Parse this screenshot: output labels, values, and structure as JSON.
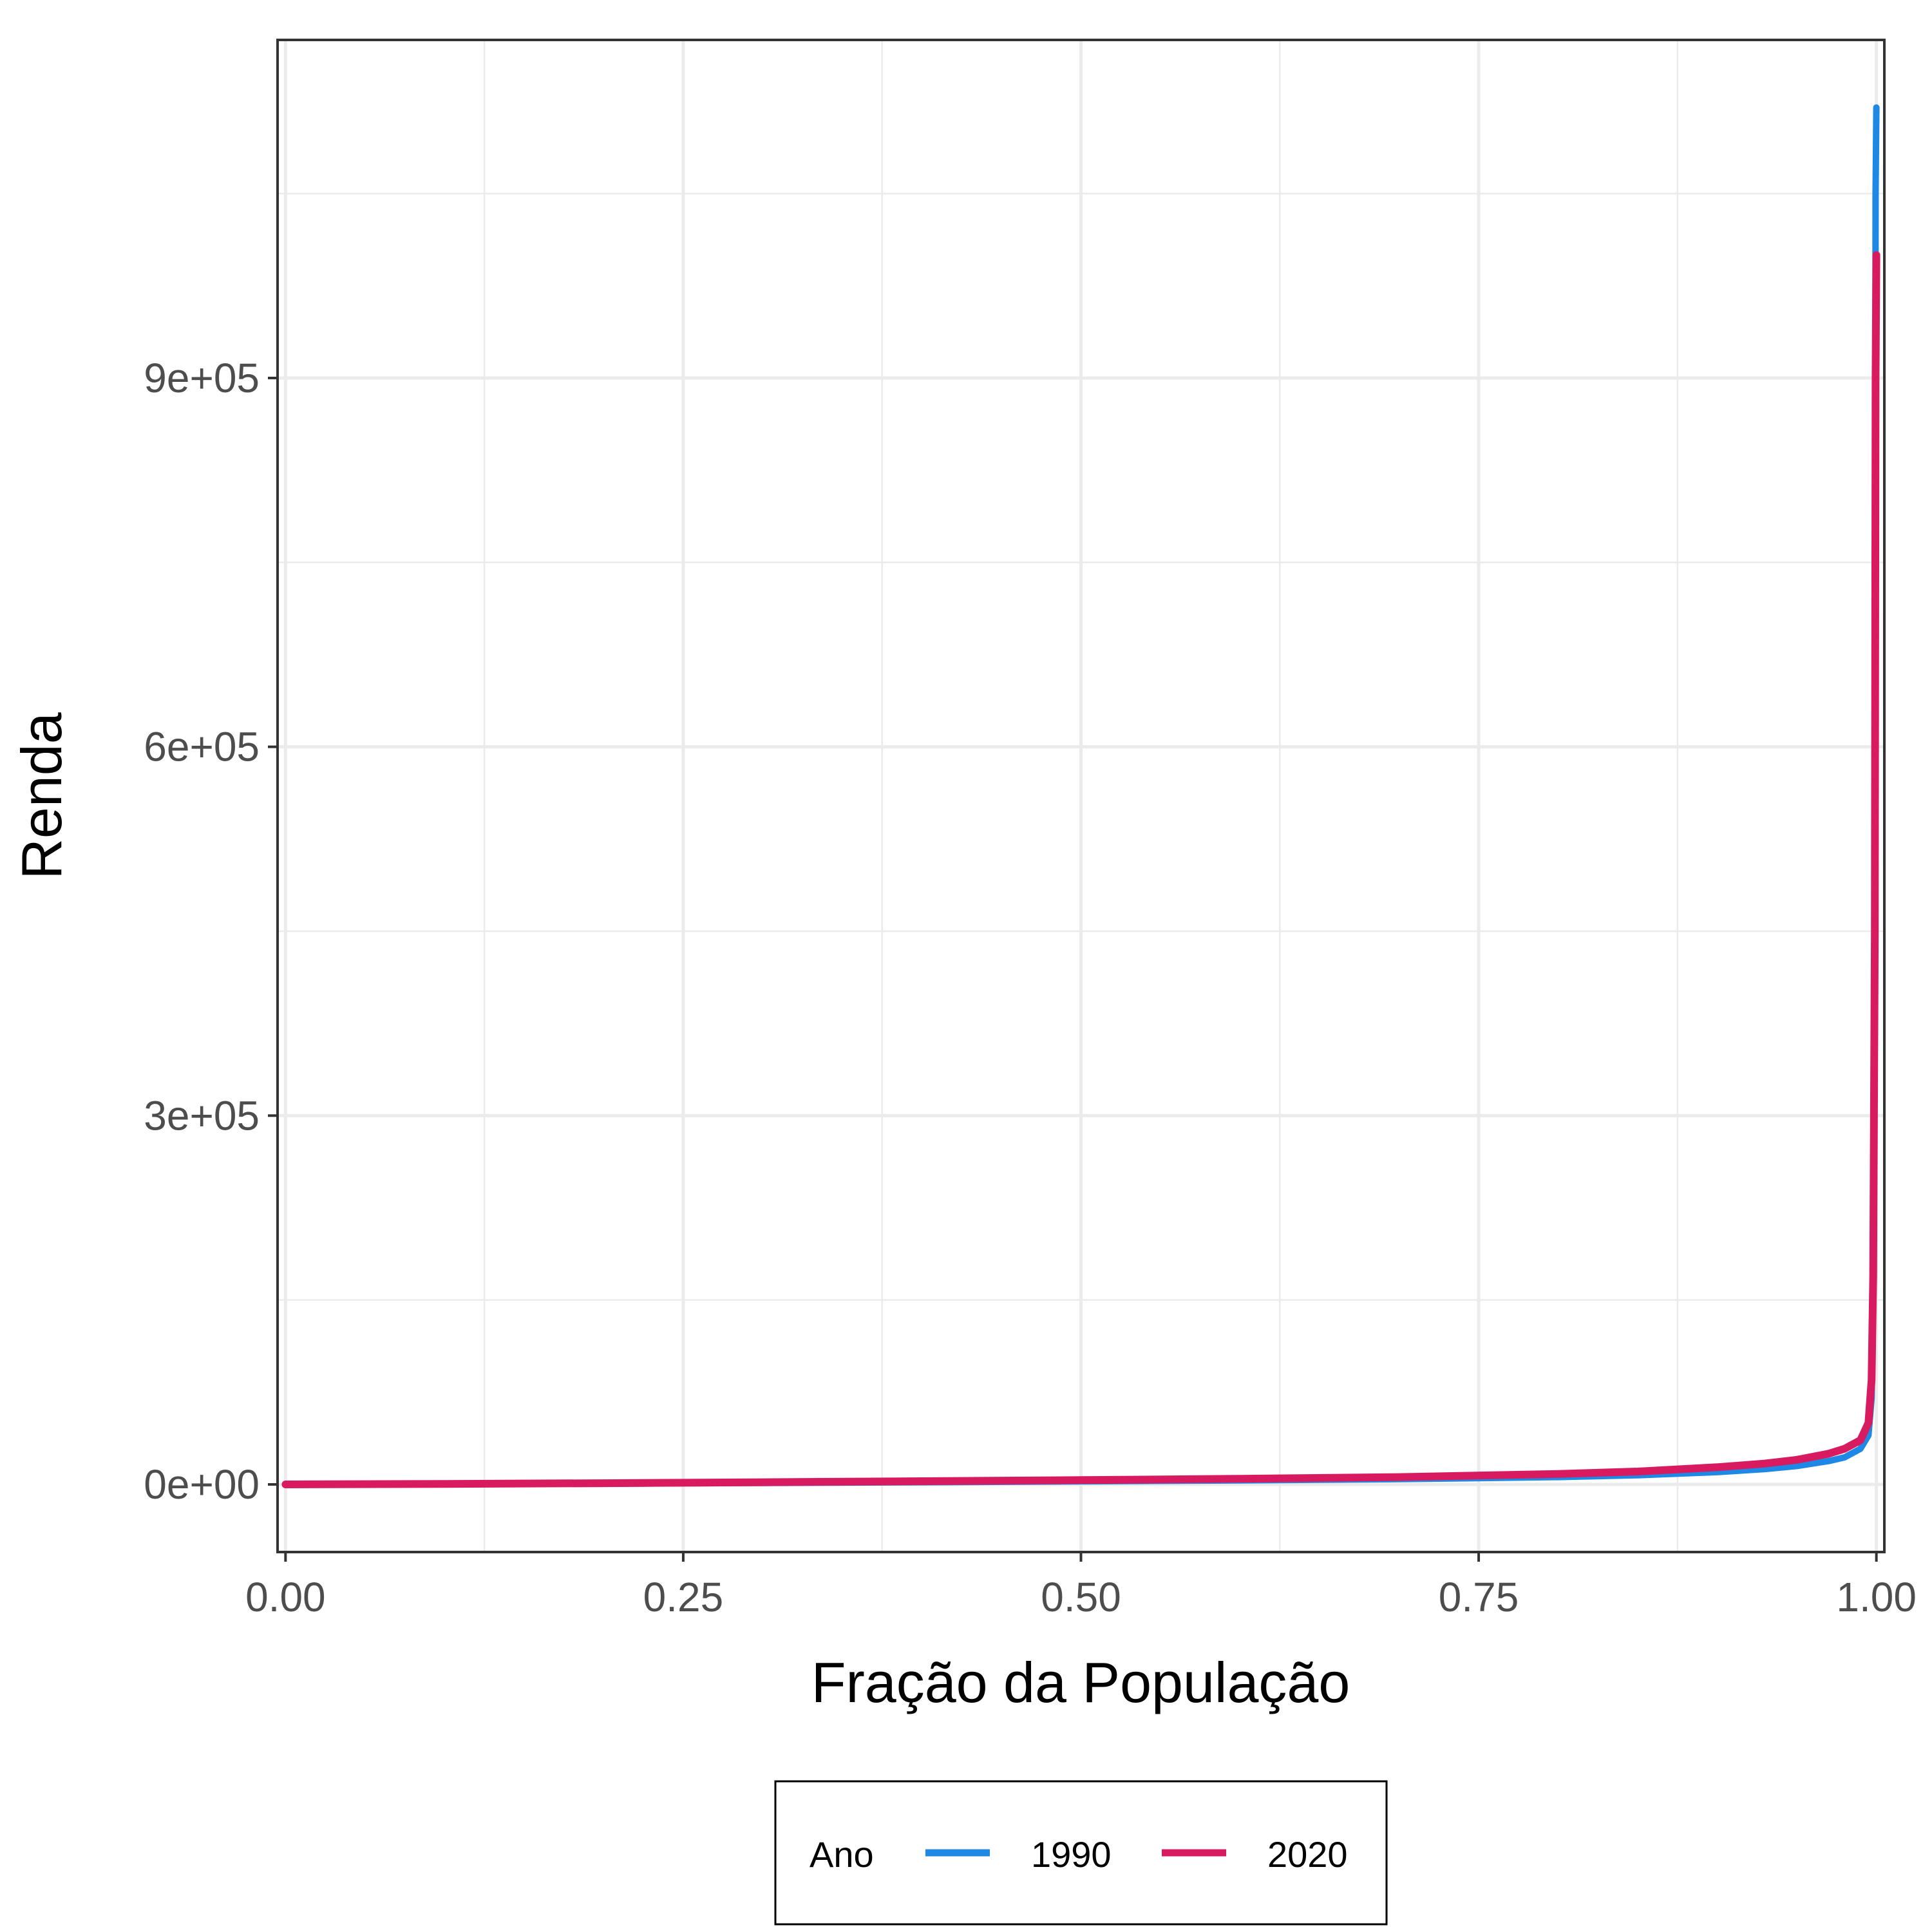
{
  "chart_data": {
    "type": "line",
    "title": "",
    "xlabel": "Fração da População",
    "ylabel": "Renda",
    "xlim": [
      -0.005,
      1.005
    ],
    "ylim": [
      -55000,
      1175000
    ],
    "x_ticks": [
      0,
      0.25,
      0.5,
      0.75,
      1
    ],
    "x_tick_labels": [
      "0.00",
      "0.25",
      "0.50",
      "0.75",
      "1.00"
    ],
    "y_ticks": [
      0,
      300000,
      600000,
      900000
    ],
    "y_tick_labels": [
      "0e+00",
      "3e+05",
      "6e+05",
      "9e+05"
    ],
    "grid": true,
    "legend": {
      "title": "Ano",
      "position": "bottom"
    },
    "series": [
      {
        "name": "1990",
        "color": "#1E88E5",
        "x": [
          0,
          0.1,
          0.2,
          0.3,
          0.4,
          0.5,
          0.6,
          0.7,
          0.8,
          0.85,
          0.9,
          0.93,
          0.95,
          0.97,
          0.98,
          0.99,
          0.995,
          0.997,
          0.998,
          0.999,
          0.9995,
          1.0
        ],
        "y": [
          0,
          200,
          600,
          1200,
          1800,
          2500,
          3300,
          4300,
          6000,
          7500,
          10000,
          12500,
          15000,
          19000,
          22000,
          29000,
          40000,
          70000,
          150000,
          400000,
          1050000,
          1120000
        ]
      },
      {
        "name": "2020",
        "color": "#D81B60",
        "x": [
          0,
          0.1,
          0.2,
          0.3,
          0.4,
          0.5,
          0.6,
          0.7,
          0.8,
          0.85,
          0.9,
          0.93,
          0.95,
          0.97,
          0.98,
          0.99,
          0.995,
          0.997,
          0.998,
          0.999,
          0.9995,
          1.0
        ],
        "y": [
          0,
          400,
          1000,
          1800,
          2600,
          3500,
          4600,
          6000,
          8500,
          10500,
          14000,
          17000,
          20000,
          25000,
          29000,
          36000,
          50000,
          85000,
          170000,
          450000,
          900000,
          1000000
        ]
      }
    ]
  }
}
